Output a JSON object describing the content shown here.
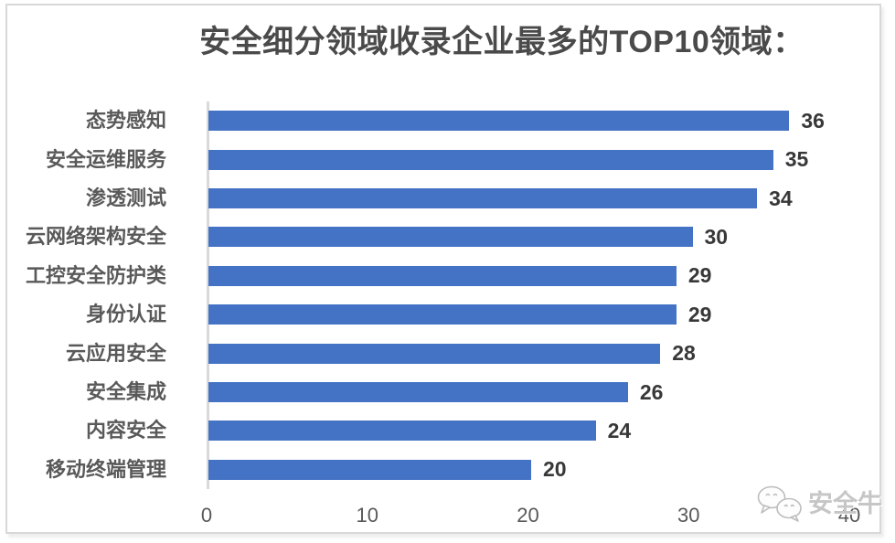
{
  "chart_data": {
    "type": "bar",
    "orientation": "horizontal",
    "title": "安全细分领域收录企业最多的TOP10领域：",
    "categories": [
      "态势感知",
      "安全运维服务",
      "渗透测试",
      "云网络架构安全",
      "工控安全防护类",
      "身份认证",
      "云应用安全",
      "安全集成",
      "内容安全",
      "移动终端管理"
    ],
    "values": [
      36,
      35,
      34,
      30,
      29,
      29,
      28,
      26,
      24,
      20
    ],
    "value_labels_shown": true,
    "xlabel": "",
    "ylabel": "",
    "xlim": [
      0,
      40
    ],
    "x_ticks": [
      0,
      10,
      20,
      30,
      40
    ],
    "grid": false,
    "legend": false,
    "bar_color": "#4472C4",
    "axis_line_color": "#d9d9d9",
    "frame_border_color": "#d8d8d8"
  },
  "watermark": {
    "icon": "wechat-bubbles-icon",
    "text": "安全牛",
    "color": "#c6c6c6"
  }
}
